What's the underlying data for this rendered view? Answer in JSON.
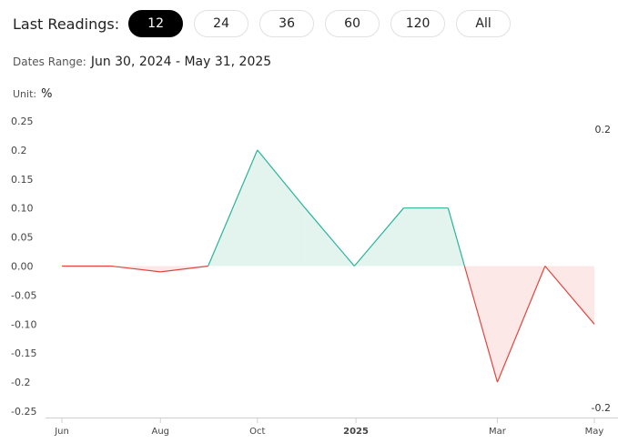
{
  "controls": {
    "last_readings_label": "Last Readings:",
    "options": [
      "12",
      "24",
      "36",
      "60",
      "120",
      "All"
    ],
    "selected": "12"
  },
  "dates_range": {
    "label": "Dates Range:",
    "value": "Jun 30, 2024 - May 31, 2025"
  },
  "unit": {
    "label": "Unit:",
    "value": "%"
  },
  "colors": {
    "positive": "#2ab39a",
    "negative": "#e0453f",
    "positive_fill": "#d9f0ea",
    "negative_fill": "#fbe0de"
  },
  "chart_data": {
    "type": "area",
    "x": [
      "2024-06-30",
      "2024-07-31",
      "2024-08-31",
      "2024-09-30",
      "2024-10-31",
      "2024-11-30",
      "2024-12-31",
      "2025-01-31",
      "2025-02-28",
      "2025-03-31",
      "2025-04-30",
      "2025-05-31"
    ],
    "values": [
      0.0,
      0.0,
      -0.01,
      0.0,
      0.2,
      0.1,
      0.0,
      0.1,
      0.1,
      -0.2,
      0.0,
      -0.1
    ],
    "ylim": [
      -0.25,
      0.25
    ],
    "yticks": [
      "0.25",
      "0.2",
      "0.15",
      "0.10",
      "0.05",
      "0.00",
      "-0.05",
      "-0.10",
      "-0.15",
      "-0.2",
      "-0.25"
    ],
    "ytick_values": [
      0.25,
      0.2,
      0.15,
      0.1,
      0.05,
      0.0,
      -0.05,
      -0.1,
      -0.15,
      -0.2,
      -0.25
    ],
    "xticks": [
      {
        "label": "Jun",
        "date": "2024-06-30",
        "bold": false
      },
      {
        "label": "Aug",
        "date": "2024-08-31",
        "bold": false
      },
      {
        "label": "Oct",
        "date": "2024-10-31",
        "bold": false
      },
      {
        "label": "2025",
        "date": "2025-01-01",
        "bold": true
      },
      {
        "label": "Mar",
        "date": "2025-03-31",
        "bold": false
      },
      {
        "label": "May",
        "date": "2025-05-31",
        "bold": false
      }
    ],
    "max_label": "0.2",
    "min_label": "-0.2",
    "grid": false,
    "legend": "none"
  }
}
